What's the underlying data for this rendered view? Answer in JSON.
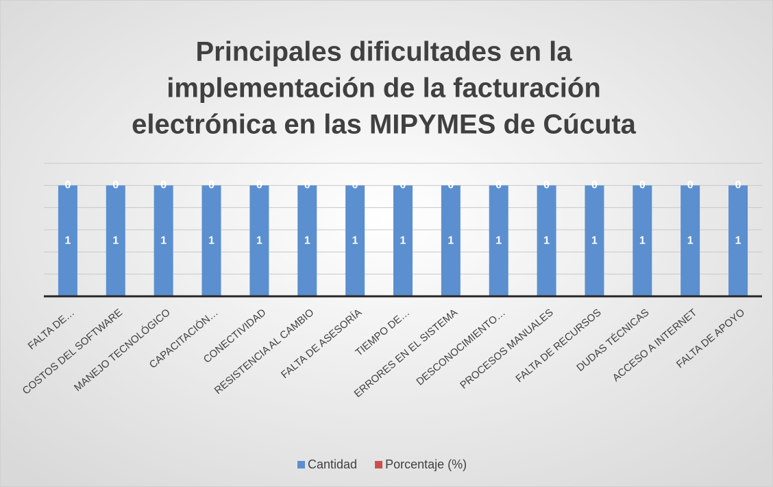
{
  "chart_data": {
    "type": "stacked_bar",
    "title": [
      "Principales dificultades en la",
      "implementación de la facturación",
      "electrónica en las MIPYMES de Cúcuta"
    ],
    "categories": [
      "FALTA DE…",
      "COSTOS DEL SOFTWARE",
      "MANEJO TECNOLÓGICO",
      "CAPACITACIÓN…",
      "CONECTIVIDAD",
      "RESISTENCIA AL CAMBIO",
      "FALTA DE ASESORÍA",
      "TIEMPO DE…",
      "ERRORES EN EL SISTEMA",
      "DESCONOCIMIENTO…",
      "PROCESOS MANUALES",
      "FALTA DE RECURSOS",
      "DUDAS TÉCNICAS",
      "ACCESO A INTERNET",
      "FALTA DE APOYO"
    ],
    "series": [
      {
        "name": "Cantidad",
        "color": "#5b8fcf",
        "values": [
          1,
          1,
          1,
          1,
          1,
          1,
          1,
          1,
          1,
          1,
          1,
          1,
          1,
          1,
          1
        ]
      },
      {
        "name": "Porcentaje (%)",
        "color": "#c9504d",
        "values": [
          0,
          0,
          0,
          0,
          0,
          0,
          0,
          0,
          0,
          0,
          0,
          0,
          0,
          0,
          0
        ]
      }
    ],
    "ylim": [
      0,
      1.2
    ],
    "yticks": [
      0,
      0.2,
      0.4,
      0.6,
      0.8,
      1,
      1.2
    ],
    "grid": true,
    "legend": "bottom"
  }
}
